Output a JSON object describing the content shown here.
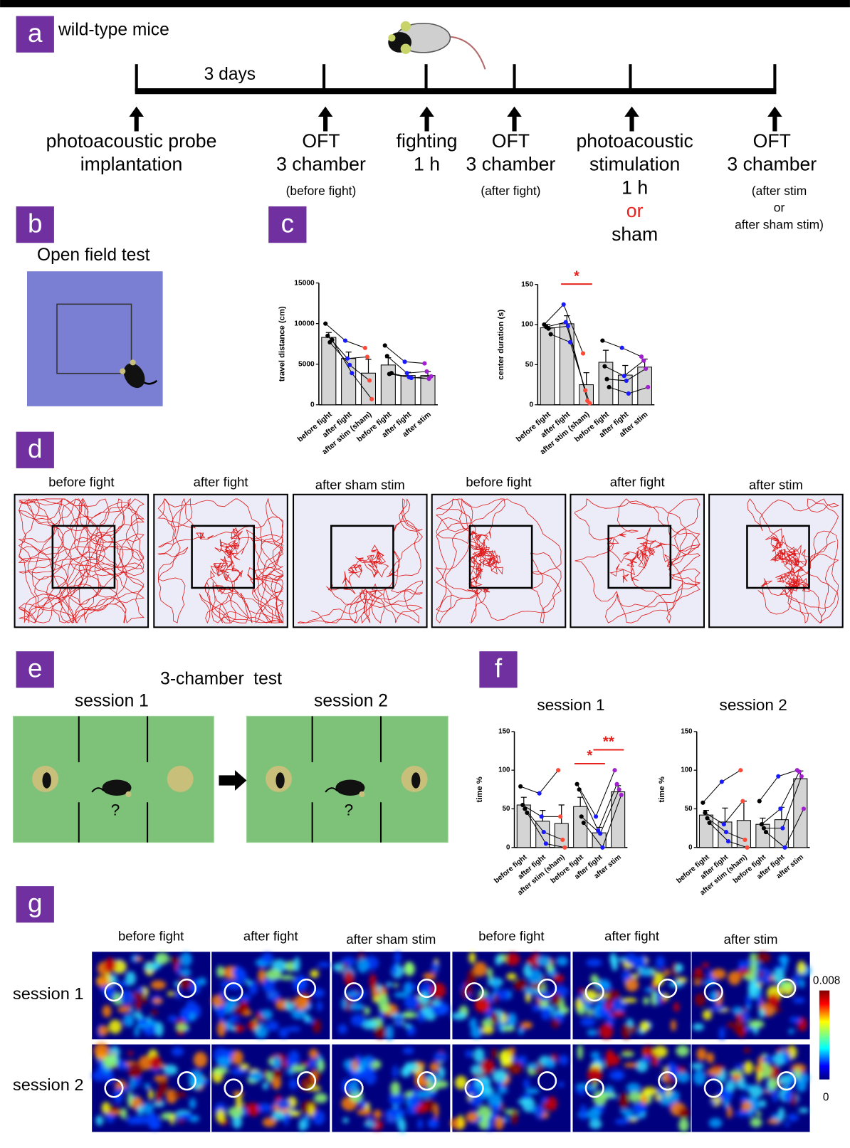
{
  "panels": [
    "a",
    "b",
    "c",
    "d",
    "e",
    "f",
    "g"
  ],
  "timeline": {
    "title": "wild-type mice",
    "duration": "3 days",
    "events": [
      {
        "lines": [
          "photoacoustic probe",
          "implantation"
        ],
        "notes": []
      },
      {
        "lines": [
          "OFT",
          "3 chamber"
        ],
        "notes": [
          "(before fight)"
        ]
      },
      {
        "lines": [
          "fighting",
          "1 h"
        ],
        "notes": []
      },
      {
        "lines": [
          "OFT",
          "3 chamber"
        ],
        "notes": [
          "(after fight)"
        ]
      },
      {
        "lines": [
          "photoacoustic",
          "stimulation",
          "1 h",
          "or",
          "sham"
        ],
        "notes": [],
        "highlight": 3,
        "highlight_color": "#e8221c"
      },
      {
        "lines": [
          "OFT",
          "3 chamber"
        ],
        "notes": [
          "(after stim",
          "or",
          "after sham stim)"
        ]
      }
    ]
  },
  "open_field": {
    "title": "Open field test"
  },
  "tracks": {
    "titles": [
      "before fight",
      "after fight",
      "after sham stim",
      "before fight",
      "after fight",
      "after stim"
    ]
  },
  "three_chamber": {
    "title": "3-chamber  test",
    "sessions": [
      "session 1",
      "session 2"
    ],
    "unknown": "?"
  },
  "heatmaps": {
    "columns": [
      "before fight",
      "after fight",
      "after sham stim",
      "before fight",
      "after fight",
      "after stim"
    ],
    "rows": [
      "session 1",
      "session 2"
    ],
    "colorbar": {
      "max": 0.008,
      "min": 0
    }
  },
  "chart_data": [
    {
      "type": "bar",
      "ylabel": "travel distance (cm)",
      "color": "#d4d4d4",
      "categories": [
        "before fight",
        "after fight",
        "after stim (sham)",
        "before fight",
        "after fight",
        "after stim"
      ],
      "values": [
        8300,
        5700,
        3900,
        4900,
        3600,
        3600
      ],
      "errors": [
        600,
        800,
        1700,
        900,
        400,
        500
      ],
      "points": [
        [
          10000,
          8500,
          7700,
          8000
        ],
        [
          7900,
          5700,
          4900,
          3900
        ],
        [
          7000,
          5900,
          3000,
          700
        ],
        [
          7300,
          6000,
          3800,
          3900
        ],
        [
          5300,
          3900,
          3400,
          3300
        ],
        [
          5100,
          4100,
          3200,
          3500
        ]
      ],
      "point_colors": [
        "#000000",
        "#1a1aff",
        "#ff4a3a",
        "#000000",
        "#1a1aff",
        "#a020d0"
      ],
      "ylim": [
        0,
        15000
      ],
      "yticks": [
        0,
        5000,
        10000,
        15000
      ],
      "significance": []
    },
    {
      "type": "bar",
      "ylabel": "center duration (s)",
      "color": "#d4d4d4",
      "categories": [
        "before fight",
        "after fight",
        "after stim (sham)",
        "before fight",
        "after fight",
        "after stim"
      ],
      "values": [
        96,
        101,
        25,
        53,
        37,
        47
      ],
      "errors": [
        4,
        10,
        15,
        15,
        12,
        10
      ],
      "points": [
        [
          100,
          97,
          95,
          88
        ],
        [
          125,
          103,
          98,
          78
        ],
        [
          64,
          18,
          5,
          2
        ],
        [
          80,
          48,
          32,
          22
        ],
        [
          71,
          36,
          30,
          14
        ],
        [
          60,
          55,
          45,
          22
        ]
      ],
      "point_colors": [
        "#000000",
        "#1a1aff",
        "#ff4a3a",
        "#000000",
        "#1a1aff",
        "#a020d0"
      ],
      "ylim": [
        0,
        150
      ],
      "yticks": [
        0,
        50,
        100,
        150
      ],
      "significance": [
        {
          "from": 1,
          "to": 2,
          "label": "*"
        }
      ]
    },
    {
      "type": "bar",
      "title": "session 1",
      "ylabel": "time %",
      "color": "#d4d4d4",
      "categories": [
        "before fight",
        "after fight",
        "after stim (sham)",
        "before fight",
        "after fight",
        "after stim"
      ],
      "values": [
        55,
        34,
        31,
        53,
        19,
        72
      ],
      "errors": [
        10,
        14,
        24,
        12,
        7,
        8
      ],
      "points": [
        [
          79,
          55,
          50,
          45
        ],
        [
          70,
          40,
          20,
          5
        ],
        [
          100,
          40,
          10,
          0
        ],
        [
          82,
          75,
          40,
          32
        ],
        [
          40,
          22,
          18,
          0
        ],
        [
          100,
          82,
          75,
          68
        ]
      ],
      "point_colors": [
        "#000000",
        "#1a1aff",
        "#ff4a3a",
        "#000000",
        "#1a1aff",
        "#a020d0"
      ],
      "ylim": [
        0,
        150
      ],
      "yticks": [
        0,
        50,
        100,
        150
      ],
      "significance": [
        {
          "from": 3,
          "to": 4,
          "label": "*"
        },
        {
          "from": 4,
          "to": 5,
          "label": "**"
        }
      ]
    },
    {
      "type": "bar",
      "title": "session 2",
      "ylabel": "time %",
      "color": "#d4d4d4",
      "categories": [
        "before fight",
        "after fight",
        "after stim (sham)",
        "before fight",
        "after fight",
        "after stim"
      ],
      "values": [
        42,
        33,
        35,
        30,
        36,
        89
      ],
      "errors": [
        6,
        18,
        25,
        8,
        16,
        10
      ],
      "points": [
        [
          58,
          45,
          38,
          32
        ],
        [
          85,
          30,
          20,
          8
        ],
        [
          100,
          60,
          10,
          0
        ],
        [
          60,
          30,
          25,
          20
        ],
        [
          92,
          50,
          25,
          0
        ],
        [
          100,
          98,
          92,
          50
        ]
      ],
      "point_colors": [
        "#000000",
        "#1a1aff",
        "#ff4a3a",
        "#000000",
        "#1a1aff",
        "#a020d0"
      ],
      "ylim": [
        0,
        150
      ],
      "yticks": [
        0,
        50,
        100,
        150
      ],
      "significance": []
    }
  ]
}
